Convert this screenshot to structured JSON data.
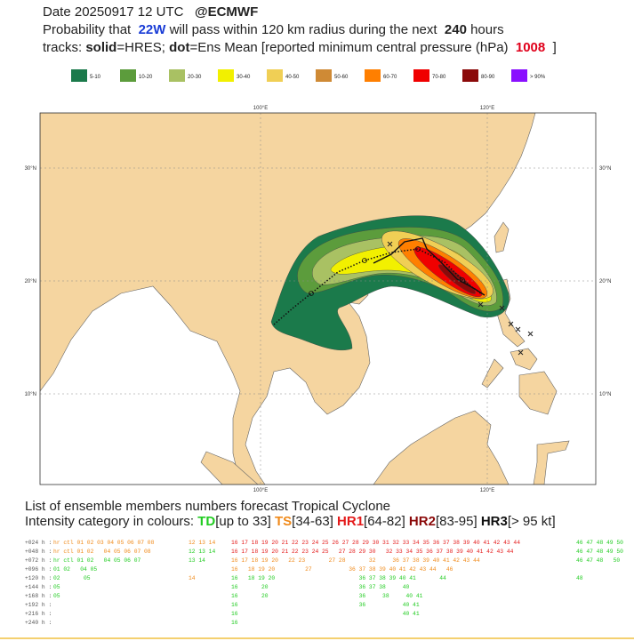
{
  "header": {
    "lines": [
      [
        {
          "text": "Date 20250917 12 UTC   "
        },
        {
          "text": "@ECMWF",
          "style": "bold"
        }
      ],
      [
        {
          "text": "Probability that  "
        },
        {
          "text": "22W",
          "style": "blue"
        },
        {
          "text": " will pass within 120 km radius during the next  "
        },
        {
          "text": "240",
          "style": "bold"
        },
        {
          "text": " hours"
        }
      ],
      [
        {
          "text": "tracks: "
        },
        {
          "text": "solid",
          "style": "bold"
        },
        {
          "text": "=HRES; "
        },
        {
          "text": "dot",
          "style": "bold"
        },
        {
          "text": "=Ens Mean [reported minimum central pressure (hPa)  "
        },
        {
          "text": "1008",
          "style": "red"
        },
        {
          "text": "  ]"
        }
      ]
    ]
  },
  "legend": [
    {
      "label": "5-10",
      "color": "#1b7a4b"
    },
    {
      "label": "10-20",
      "color": "#5c9c3c"
    },
    {
      "label": "20-30",
      "color": "#a9c163"
    },
    {
      "label": "30-40",
      "color": "#f2f000"
    },
    {
      "label": "40-50",
      "color": "#f0cf55"
    },
    {
      "label": "50-60",
      "color": "#cf8a35"
    },
    {
      "label": "60-70",
      "color": "#ff7f00"
    },
    {
      "label": "70-80",
      "color": "#f00000"
    },
    {
      "label": "80-90",
      "color": "#8b0a0a"
    },
    {
      "label": "> 90%",
      "color": "#8a10ff"
    }
  ],
  "map": {
    "lon_labels": [
      "100°E",
      "120°E"
    ],
    "lat_labels": [
      "30°N",
      "20°N",
      "10°N"
    ]
  },
  "list": {
    "title": "List of ensemble members numbers forecast Tropical Cyclone",
    "intensity": [
      {
        "text": "Intensity category in colours: "
      },
      {
        "text": "TD",
        "cat": "td"
      },
      {
        "text": "[up to 33] "
      },
      {
        "text": "TS",
        "cat": "ts"
      },
      {
        "text": "[34-63] "
      },
      {
        "text": "HR1",
        "cat": "hr1"
      },
      {
        "text": "[64-82] "
      },
      {
        "text": "HR2",
        "cat": "hr2"
      },
      {
        "text": "[83-95] "
      },
      {
        "text": "HR3",
        "cat": "hr3"
      },
      {
        "text": "[> 95 kt]"
      }
    ],
    "rows": [
      {
        "label": "+024 h :",
        "cells": [
          {
            "text": "hr ctl 01 02 03 04 05 06 07 08",
            "cat": "ts"
          },
          {
            "text": "12 13 14",
            "cat": "ts"
          },
          {
            "text": "16 17 18 19 20 21 22 23 24 25 26 27 28 29 30 31 32 33 34 35 36 37 38 39 40 41 42 43 44",
            "cat": "hr1"
          },
          {
            "text": "46 47 48 49 50",
            "cat": "td"
          }
        ]
      },
      {
        "label": "+048 h :",
        "cells": [
          {
            "text": "hr ctl 01 02   04 05 06 07 08",
            "cat": "ts"
          },
          {
            "text": "12 13 14",
            "cat": "td"
          },
          {
            "text": "16 17 18 19 20 21 22 23 24 25   27 28 29 30   32 33 34 35 36 37 38 39 40 41 42 43 44",
            "cat": "hr1"
          },
          {
            "text": "46 47 48 49 50",
            "cat": "td"
          }
        ]
      },
      {
        "label": "+072 h :",
        "cells": [
          {
            "text": "hr ctl 01 02   04 05 06 07",
            "cat": "td"
          },
          {
            "text": "13 14",
            "cat": "td"
          },
          {
            "text": "16 17 18 19 20   22 23       27 28       32     36 37 38 39 40 41 42 43 44",
            "cat": "ts"
          },
          {
            "text": "46 47 48   50",
            "cat": "td"
          }
        ]
      },
      {
        "label": "+096 h :",
        "cells": [
          {
            "text": "01 02   04 05",
            "cat": "td"
          },
          {
            "text": "",
            "cat": "td"
          },
          {
            "text": "16   18 19 20         27           36 37 38 39 40 41 42 43 44   46",
            "cat": "ts"
          },
          {
            "text": "",
            "cat": "td"
          }
        ]
      },
      {
        "label": "+120 h :",
        "cells": [
          {
            "text": "02       05",
            "cat": "td"
          },
          {
            "text": "14",
            "cat": "ts"
          },
          {
            "text": "16   18 19 20                         36 37 38 39 40 41       44",
            "cat": "td"
          },
          {
            "text": "48",
            "cat": "td"
          }
        ]
      },
      {
        "label": "+144 h :",
        "cells": [
          {
            "text": "05",
            "cat": "td"
          },
          {
            "text": "",
            "cat": "td"
          },
          {
            "text": "16       20                           36 37 38     40",
            "cat": "td"
          },
          {
            "text": "",
            "cat": "td"
          }
        ]
      },
      {
        "label": "+168 h :",
        "cells": [
          {
            "text": "05",
            "cat": "td"
          },
          {
            "text": "",
            "cat": "td"
          },
          {
            "text": "16       20                           36     38     40 41",
            "cat": "td"
          },
          {
            "text": "",
            "cat": "td"
          }
        ]
      },
      {
        "label": "+192 h :",
        "cells": [
          {
            "text": "",
            "cat": "td"
          },
          {
            "text": "",
            "cat": "td"
          },
          {
            "text": "16                                    36           40 41",
            "cat": "td"
          },
          {
            "text": "",
            "cat": "td"
          }
        ]
      },
      {
        "label": "+216 h :",
        "cells": [
          {
            "text": "",
            "cat": "td"
          },
          {
            "text": "",
            "cat": "td"
          },
          {
            "text": "16                                                 40 41",
            "cat": "td"
          },
          {
            "text": "",
            "cat": "td"
          }
        ]
      },
      {
        "label": "+240 h :",
        "cells": [
          {
            "text": "",
            "cat": "td"
          },
          {
            "text": "",
            "cat": "td"
          },
          {
            "text": "16",
            "cat": "td"
          },
          {
            "text": "",
            "cat": "td"
          }
        ]
      }
    ]
  }
}
